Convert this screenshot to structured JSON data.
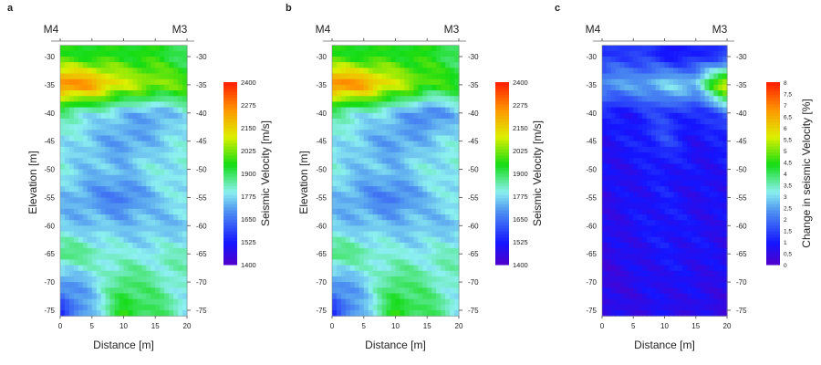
{
  "chart_data": [
    {
      "panel": "a",
      "type": "heatmap",
      "top_labels": [
        "M4",
        "M3"
      ],
      "xlabel": "Distance [m]",
      "ylabel": "Elevation [m]",
      "xlim": [
        0,
        20
      ],
      "ylim": [
        -76,
        -28
      ],
      "xticks": [
        "0",
        "5",
        "10",
        "15",
        "20"
      ],
      "yticks": [
        "-30",
        "-35",
        "-40",
        "-45",
        "-50",
        "-55",
        "-60",
        "-65",
        "-70",
        "-75"
      ],
      "colorbar": {
        "label": "Seismic Velocity [m/s]",
        "range": [
          1400,
          2400
        ],
        "ticks": [
          "1400",
          "1525",
          "1650",
          "1775",
          "1900",
          "2025",
          "2150",
          "2275",
          "2400"
        ]
      },
      "x": [
        0,
        5,
        10,
        15,
        20
      ],
      "y": [
        -30,
        -35,
        -40,
        -45,
        -50,
        -55,
        -60,
        -65,
        -70,
        -75
      ],
      "values": [
        [
          1950,
          1950,
          1950,
          1950,
          1900
        ],
        [
          2300,
          2250,
          2100,
          2050,
          2000
        ],
        [
          1850,
          1800,
          1750,
          1700,
          1800
        ],
        [
          1800,
          1750,
          1700,
          1750,
          1800
        ],
        [
          1800,
          1750,
          1750,
          1800,
          1800
        ],
        [
          1750,
          1700,
          1650,
          1750,
          1800
        ],
        [
          1750,
          1750,
          1750,
          1750,
          1750
        ],
        [
          1900,
          1850,
          1800,
          1800,
          1850
        ],
        [
          1700,
          1750,
          1900,
          1850,
          1800
        ],
        [
          1550,
          1750,
          1950,
          1900,
          1800
        ]
      ]
    },
    {
      "panel": "b",
      "type": "heatmap",
      "top_labels": [
        "M4",
        "M3"
      ],
      "xlabel": "Distance [m]",
      "ylabel": "Elevation [m]",
      "xlim": [
        0,
        20
      ],
      "ylim": [
        -76,
        -28
      ],
      "xticks": [
        "0",
        "5",
        "10",
        "15",
        "20"
      ],
      "yticks": [
        "-30",
        "-35",
        "-40",
        "-45",
        "-50",
        "-55",
        "-60",
        "-65",
        "-70",
        "-75"
      ],
      "colorbar": {
        "label": "Seismic Velocity [m/s]",
        "range": [
          1400,
          2400
        ],
        "ticks": [
          "1400",
          "1525",
          "1650",
          "1775",
          "1900",
          "2025",
          "2150",
          "2275",
          "2400"
        ]
      },
      "x": [
        0,
        5,
        10,
        15,
        20
      ],
      "y": [
        -30,
        -35,
        -40,
        -45,
        -50,
        -55,
        -60,
        -65,
        -70,
        -75
      ],
      "values": [
        [
          1950,
          1950,
          1950,
          1950,
          1900
        ],
        [
          2300,
          2250,
          2100,
          2000,
          1950
        ],
        [
          1850,
          1800,
          1750,
          1650,
          1750
        ],
        [
          1800,
          1750,
          1700,
          1750,
          1800
        ],
        [
          1800,
          1750,
          1750,
          1800,
          1800
        ],
        [
          1750,
          1700,
          1650,
          1750,
          1800
        ],
        [
          1750,
          1750,
          1750,
          1750,
          1750
        ],
        [
          1900,
          1850,
          1800,
          1800,
          1850
        ],
        [
          1700,
          1750,
          1900,
          1850,
          1800
        ],
        [
          1550,
          1750,
          1950,
          1900,
          1800
        ]
      ]
    },
    {
      "panel": "c",
      "type": "heatmap",
      "top_labels": [
        "M4",
        "M3"
      ],
      "xlabel": "Distance [m]",
      "ylabel": "",
      "xlim": [
        0,
        20
      ],
      "ylim": [
        -76,
        -28
      ],
      "xticks": [
        "0",
        "5",
        "10",
        "15",
        "20"
      ],
      "yticks": [
        "-30",
        "-35",
        "-40",
        "-45",
        "-50",
        "-55",
        "-60",
        "-65",
        "-70",
        "-75"
      ],
      "colorbar": {
        "label": "Change in seismic Velocity [%]",
        "range": [
          0,
          8
        ],
        "ticks": [
          "0",
          "0,5",
          "1",
          "1,5",
          "2",
          "2,5",
          "3",
          "3,5",
          "4",
          "4,5",
          "5",
          "5,5",
          "6",
          "6,5",
          "7",
          "7,5",
          "8"
        ]
      },
      "x": [
        0,
        5,
        10,
        15,
        20
      ],
      "y": [
        -30,
        -35,
        -40,
        -45,
        -50,
        -55,
        -60,
        -65,
        -70,
        -75
      ],
      "values": [
        [
          1.2,
          1.5,
          1,
          1,
          1.5
        ],
        [
          2.5,
          2.5,
          3,
          3,
          6
        ],
        [
          1,
          1,
          1.5,
          1,
          2
        ],
        [
          0.8,
          1,
          1.5,
          0.8,
          1
        ],
        [
          0.7,
          0.8,
          1,
          0.8,
          0.9
        ],
        [
          0.6,
          0.8,
          1,
          0.7,
          0.8
        ],
        [
          0.6,
          0.8,
          1,
          0.8,
          0.7
        ],
        [
          0.5,
          0.7,
          0.9,
          0.8,
          0.7
        ],
        [
          0.4,
          0.6,
          0.8,
          0.7,
          0.6
        ],
        [
          0.5,
          0.6,
          0.7,
          0.6,
          0.5
        ]
      ]
    }
  ]
}
